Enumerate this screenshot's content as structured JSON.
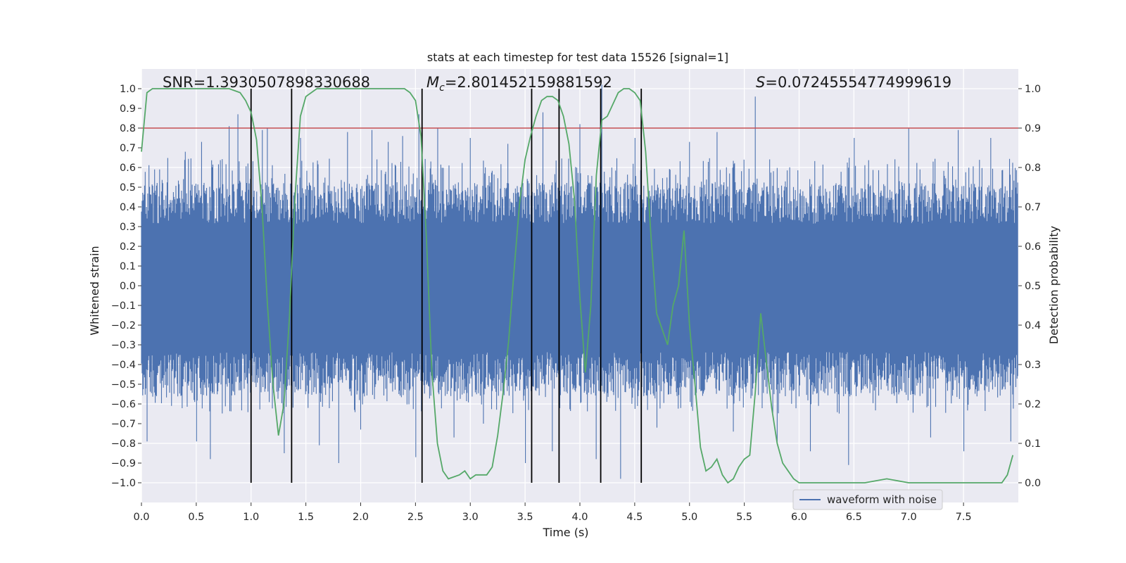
{
  "chart_data": {
    "type": "line",
    "title": "stats at each timestep for test data 15526 [signal=1]",
    "xlabel": "Time (s)",
    "ylabel_left": "Whitened strain",
    "ylabel_right": "Detection probability",
    "xlim": [
      0.0,
      8.0
    ],
    "ylim_left": [
      -1.1,
      1.1
    ],
    "ylim_right": [
      -0.05,
      1.05
    ],
    "x_ticks": [
      "0.0",
      "0.5",
      "1.0",
      "1.5",
      "2.0",
      "2.5",
      "3.0",
      "3.5",
      "4.0",
      "4.5",
      "5.0",
      "5.5",
      "6.0",
      "6.5",
      "7.0",
      "7.5"
    ],
    "y_left_ticks": [
      "1.0",
      "0.9",
      "0.8",
      "0.7",
      "0.6",
      "0.5",
      "0.4",
      "0.3",
      "0.2",
      "0.1",
      "0.0",
      "−0.1",
      "−0.2",
      "−0.3",
      "−0.4",
      "−0.5",
      "−0.6",
      "−0.7",
      "−0.8",
      "−0.9",
      "−1.0"
    ],
    "y_right_ticks": [
      "1.0",
      "0.9",
      "0.8",
      "0.7",
      "0.6",
      "0.5",
      "0.4",
      "0.3",
      "0.2",
      "0.1",
      "0.0"
    ],
    "grid": true,
    "background": "#eaeaf2",
    "annotations": {
      "snr": "SNR=1.3930507898330688",
      "mc_symbol": "M",
      "mc_sub": "c",
      "mc_value": "=2.801452159881592",
      "s_symbol": "S",
      "s_value": "=0.07245554774999619"
    },
    "legend": {
      "label": "waveform with noise",
      "position": "lower-right"
    },
    "threshold": {
      "value": 0.9,
      "axis": "right",
      "color": "#c44e52"
    },
    "vertical_markers": [
      1.0,
      1.37,
      2.56,
      3.56,
      3.81,
      4.19,
      4.56
    ],
    "waveform": {
      "name": "waveform with noise",
      "color": "#4c72b0",
      "samples": 1400,
      "typical_min": -0.45,
      "typical_max": 0.42,
      "spikes": [
        [
          0.05,
          -0.79
        ],
        [
          0.12,
          0.59
        ],
        [
          0.4,
          0.68
        ],
        [
          0.5,
          -0.79
        ],
        [
          0.55,
          0.73
        ],
        [
          0.63,
          -0.88
        ],
        [
          0.8,
          0.81
        ],
        [
          0.88,
          0.87
        ],
        [
          0.97,
          0.62
        ],
        [
          1.1,
          0.79
        ],
        [
          1.15,
          0.8
        ],
        [
          1.3,
          -0.85
        ],
        [
          1.45,
          0.75
        ],
        [
          1.62,
          -0.81
        ],
        [
          1.8,
          -0.9
        ],
        [
          1.88,
          0.78
        ],
        [
          2.0,
          -0.73
        ],
        [
          2.1,
          0.79
        ],
        [
          2.25,
          0.73
        ],
        [
          2.38,
          0.76
        ],
        [
          2.5,
          -0.87
        ],
        [
          2.53,
          0.87
        ],
        [
          2.7,
          0.8
        ],
        [
          2.85,
          -0.77
        ],
        [
          3.0,
          0.75
        ],
        [
          3.12,
          -0.7
        ],
        [
          3.34,
          0.72
        ],
        [
          3.5,
          -0.9
        ],
        [
          3.66,
          0.88
        ],
        [
          3.75,
          -0.84
        ],
        [
          4.0,
          0.82
        ],
        [
          4.15,
          -0.88
        ],
        [
          4.2,
          1.02
        ],
        [
          4.37,
          -0.98
        ],
        [
          4.5,
          0.75
        ],
        [
          4.7,
          -0.72
        ],
        [
          5.0,
          0.73
        ],
        [
          5.25,
          0.78
        ],
        [
          5.4,
          -0.74
        ],
        [
          5.6,
          0.96
        ],
        [
          5.8,
          -0.79
        ],
        [
          6.1,
          -0.84
        ],
        [
          6.45,
          -0.91
        ],
        [
          6.5,
          0.75
        ],
        [
          7.0,
          0.8
        ],
        [
          7.2,
          -0.77
        ],
        [
          7.45,
          0.79
        ],
        [
          7.5,
          -0.84
        ],
        [
          7.75,
          0.75
        ],
        [
          7.93,
          -0.79
        ]
      ]
    },
    "probability": {
      "color": "#55a868",
      "x": [
        0.0,
        0.05,
        0.1,
        0.15,
        0.2,
        0.3,
        0.4,
        0.5,
        0.6,
        0.7,
        0.8,
        0.9,
        0.95,
        1.0,
        1.05,
        1.1,
        1.15,
        1.2,
        1.25,
        1.3,
        1.35,
        1.4,
        1.45,
        1.5,
        1.6,
        1.7,
        1.8,
        1.9,
        2.0,
        2.1,
        2.2,
        2.3,
        2.4,
        2.45,
        2.5,
        2.55,
        2.6,
        2.65,
        2.7,
        2.75,
        2.8,
        2.9,
        2.95,
        3.0,
        3.05,
        3.1,
        3.15,
        3.2,
        3.25,
        3.3,
        3.35,
        3.4,
        3.45,
        3.5,
        3.55,
        3.6,
        3.65,
        3.7,
        3.75,
        3.8,
        3.85,
        3.9,
        3.95,
        4.0,
        4.05,
        4.1,
        4.15,
        4.2,
        4.25,
        4.3,
        4.35,
        4.4,
        4.45,
        4.5,
        4.55,
        4.6,
        4.65,
        4.7,
        4.75,
        4.8,
        4.85,
        4.9,
        4.95,
        5.0,
        5.05,
        5.1,
        5.15,
        5.2,
        5.25,
        5.3,
        5.35,
        5.4,
        5.45,
        5.5,
        5.55,
        5.6,
        5.65,
        5.7,
        5.75,
        5.8,
        5.85,
        5.9,
        5.95,
        6.0,
        6.2,
        6.4,
        6.6,
        6.8,
        7.0,
        7.2,
        7.4,
        7.6,
        7.8,
        7.85,
        7.9,
        7.95
      ],
      "y": [
        0.84,
        0.99,
        1.0,
        1.0,
        1.0,
        1.0,
        1.0,
        1.0,
        1.0,
        1.0,
        1.0,
        0.99,
        0.97,
        0.94,
        0.87,
        0.7,
        0.45,
        0.25,
        0.12,
        0.2,
        0.42,
        0.72,
        0.93,
        0.98,
        1.0,
        1.0,
        1.0,
        1.0,
        1.0,
        1.0,
        1.0,
        1.0,
        1.0,
        0.99,
        0.97,
        0.88,
        0.62,
        0.28,
        0.1,
        0.03,
        0.01,
        0.02,
        0.03,
        0.01,
        0.02,
        0.02,
        0.02,
        0.04,
        0.12,
        0.23,
        0.36,
        0.54,
        0.71,
        0.82,
        0.88,
        0.93,
        0.97,
        0.98,
        0.98,
        0.97,
        0.93,
        0.86,
        0.72,
        0.47,
        0.28,
        0.45,
        0.78,
        0.92,
        0.93,
        0.96,
        0.99,
        1.0,
        1.0,
        0.99,
        0.97,
        0.84,
        0.62,
        0.43,
        0.39,
        0.35,
        0.45,
        0.5,
        0.64,
        0.4,
        0.25,
        0.09,
        0.03,
        0.04,
        0.06,
        0.02,
        0.0,
        0.01,
        0.04,
        0.06,
        0.07,
        0.23,
        0.43,
        0.31,
        0.19,
        0.1,
        0.05,
        0.03,
        0.01,
        0.0,
        0.0,
        0.0,
        0.0,
        0.01,
        0.0,
        0.0,
        0.0,
        0.0,
        0.0,
        0.0,
        0.02,
        0.07
      ]
    }
  }
}
